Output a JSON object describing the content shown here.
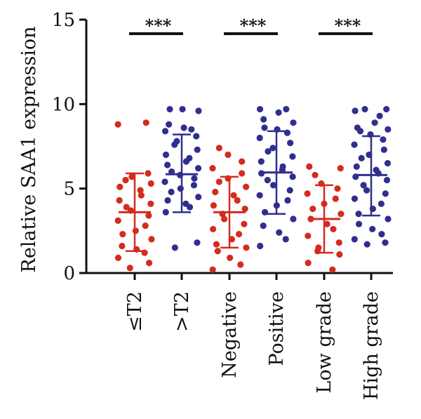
{
  "chart_data": {
    "type": "scatter",
    "ylabel": "Relative SAA1 expression",
    "ylim": [
      0,
      15
    ],
    "yticks": [
      0,
      5,
      10,
      15
    ],
    "grid": false,
    "categories": [
      "≤T2",
      ">T2",
      "Negative",
      "Positive",
      "Low grade",
      "High grade"
    ],
    "groups": [
      {
        "category": "≤T2",
        "color": "#d42b1e",
        "mean": 3.6,
        "sd_low": 1.3,
        "sd_high": 5.9,
        "points": [
          8.9,
          8.8,
          5.9,
          5.7,
          5.5,
          5.3,
          5.1,
          4.9,
          4.6,
          4.3,
          4.1,
          3.9,
          3.7,
          3.4,
          3.1,
          2.8,
          2.5,
          2.3,
          2.0,
          1.6,
          1.4,
          1.2,
          0.9,
          0.6,
          0.3
        ]
      },
      {
        "category": ">T2",
        "color": "#2f2f8f",
        "mean": 5.85,
        "sd_low": 3.6,
        "sd_high": 8.2,
        "points": [
          9.7,
          9.7,
          9.6,
          8.8,
          8.6,
          8.5,
          8.4,
          8.1,
          7.8,
          7.6,
          7.3,
          7.0,
          6.8,
          6.6,
          6.4,
          6.2,
          6.0,
          5.8,
          5.6,
          5.4,
          5.2,
          5.0,
          4.8,
          4.5,
          4.3,
          4.1,
          3.9,
          3.6,
          1.8,
          1.5
        ]
      },
      {
        "category": "Negative",
        "color": "#d42b1e",
        "mean": 3.6,
        "sd_low": 1.5,
        "sd_high": 5.7,
        "points": [
          7.4,
          7.0,
          6.6,
          6.2,
          5.9,
          5.6,
          5.4,
          5.1,
          4.8,
          4.6,
          4.3,
          4.0,
          3.8,
          3.5,
          3.2,
          2.9,
          2.6,
          2.3,
          2.0,
          1.7,
          1.5,
          1.3,
          0.9,
          0.5,
          0.2
        ]
      },
      {
        "category": "Positive",
        "color": "#2f2f8f",
        "mean": 5.95,
        "sd_low": 3.5,
        "sd_high": 8.4,
        "points": [
          9.7,
          9.7,
          9.5,
          9.1,
          8.9,
          8.6,
          8.5,
          8.3,
          8.0,
          7.7,
          7.4,
          7.2,
          6.9,
          6.6,
          6.3,
          6.1,
          5.9,
          5.7,
          5.5,
          5.2,
          4.9,
          4.6,
          4.3,
          4.0,
          3.6,
          3.2,
          2.8,
          2.4,
          2.0,
          1.6
        ]
      },
      {
        "category": "Low grade",
        "color": "#d42b1e",
        "mean": 3.2,
        "sd_low": 1.2,
        "sd_high": 5.2,
        "points": [
          6.3,
          6.2,
          5.8,
          5.3,
          5.0,
          4.7,
          4.4,
          4.1,
          3.8,
          3.5,
          3.2,
          2.9,
          2.6,
          2.2,
          1.8,
          1.5,
          1.3,
          1.1,
          0.6,
          0.2
        ]
      },
      {
        "category": "High grade",
        "color": "#2f2f8f",
        "mean": 5.8,
        "sd_low": 3.4,
        "sd_high": 8.1,
        "points": [
          9.7,
          9.7,
          9.6,
          9.3,
          8.9,
          8.6,
          8.5,
          8.4,
          8.2,
          7.9,
          7.6,
          7.3,
          7.0,
          6.8,
          6.5,
          6.3,
          6.1,
          5.9,
          5.7,
          5.5,
          5.2,
          4.9,
          4.7,
          4.4,
          4.1,
          3.8,
          3.5,
          3.2,
          2.9,
          2.6,
          2.3,
          2.0,
          1.8,
          1.7
        ]
      }
    ],
    "significance": [
      {
        "between": [
          "≤T2",
          ">T2"
        ],
        "label": "***"
      },
      {
        "between": [
          "Negative",
          "Positive"
        ],
        "label": "***"
      },
      {
        "between": [
          "Low grade",
          "High grade"
        ],
        "label": "***"
      }
    ]
  }
}
